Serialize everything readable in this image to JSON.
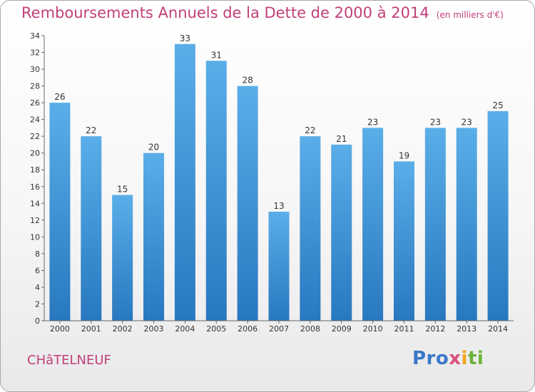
{
  "title": "Remboursements Annuels de la Dette de 2000 à 2014",
  "subtitle": "(en milliers d'€)",
  "town": "CHâTELNEUF",
  "logo": {
    "letters": [
      "Pro",
      "x",
      "i",
      "ti"
    ],
    "colors": [
      "#3a78c9",
      "#d94f7a",
      "#f2a51a",
      "#6bb33a"
    ]
  },
  "colors": {
    "title": "#c0407a",
    "bar_top": "#5aaee8",
    "bar_bottom": "#2878bf",
    "axis": "#666666"
  },
  "chart_data": {
    "type": "bar",
    "categories": [
      "2000",
      "2001",
      "2002",
      "2003",
      "2004",
      "2005",
      "2006",
      "2007",
      "2008",
      "2009",
      "2010",
      "2011",
      "2012",
      "2013",
      "2014"
    ],
    "values": [
      26,
      22,
      15,
      20,
      33,
      31,
      28,
      13,
      22,
      21,
      23,
      19,
      23,
      23,
      25
    ],
    "ylim": [
      0,
      34
    ],
    "yticks": [
      0,
      2,
      4,
      6,
      8,
      10,
      12,
      14,
      16,
      18,
      20,
      22,
      24,
      26,
      28,
      30,
      32,
      34
    ],
    "grid": false
  }
}
